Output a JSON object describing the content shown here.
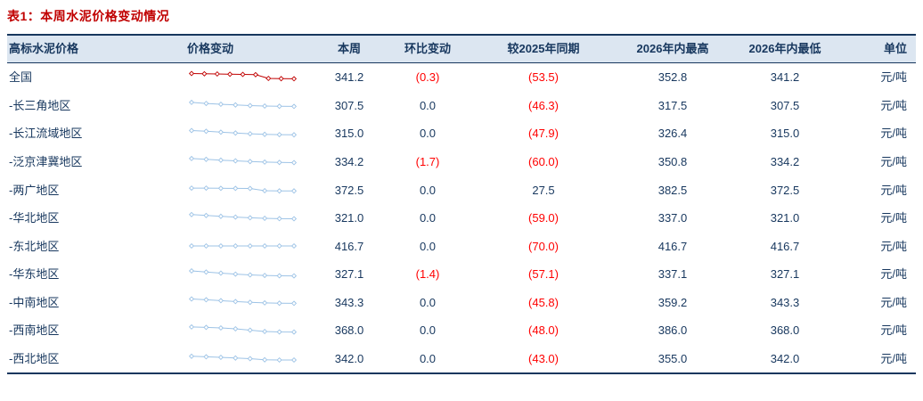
{
  "title": "表1：本周水泥价格变动情况",
  "colors": {
    "title_red": "#c00000",
    "negative_red": "#ff0000",
    "header_bg": "#dce6f1",
    "text_navy": "#17375e",
    "spark_blue": "#9dc3e6",
    "spark_national_red": "#c00000"
  },
  "table": {
    "headers": [
      "高标水泥价格",
      "价格变动",
      "本周",
      "环比变动",
      "较2025年同期",
      "2026年内最高",
      "2026年内最低",
      "单位"
    ],
    "rows": [
      {
        "name": "全国",
        "this_week": "341.2",
        "wow": "(0.3)",
        "yoy": "(53.5)",
        "high": "352.8",
        "low": "341.2",
        "unit": "元/吨",
        "spark_color": "#c00000",
        "spark": [
          9.6,
          9.4,
          9.2,
          9.0,
          8.8,
          8.6,
          5.2,
          5.0,
          4.9
        ]
      },
      {
        "name": "-长三角地区",
        "this_week": "307.5",
        "wow": "0.0",
        "yoy": "(46.3)",
        "high": "317.5",
        "low": "307.5",
        "unit": "元/吨",
        "spark_color": "#9dc3e6",
        "spark": [
          8.5,
          7.5,
          6.8,
          6.2,
          5.6,
          5.2,
          5.0,
          4.9
        ]
      },
      {
        "name": "-长江流域地区",
        "this_week": "315.0",
        "wow": "0.0",
        "yoy": "(47.9)",
        "high": "326.4",
        "low": "315.0",
        "unit": "元/吨",
        "spark_color": "#9dc3e6",
        "spark": [
          8.8,
          8.2,
          7.4,
          6.6,
          5.9,
          5.4,
          5.1,
          5.0
        ]
      },
      {
        "name": "-泛京津冀地区",
        "this_week": "334.2",
        "wow": "(1.7)",
        "yoy": "(60.0)",
        "high": "350.8",
        "low": "334.2",
        "unit": "元/吨",
        "spark_color": "#9dc3e6",
        "spark": [
          8.5,
          7.8,
          7.0,
          6.4,
          5.8,
          5.3,
          5.0,
          4.8
        ]
      },
      {
        "name": "-两广地区",
        "this_week": "372.5",
        "wow": "0.0",
        "yoy": "27.5",
        "high": "382.5",
        "low": "372.5",
        "unit": "元/吨",
        "spark_color": "#9dc3e6",
        "spark": [
          7.5,
          7.5,
          7.4,
          7.3,
          7.2,
          5.2,
          5.0,
          5.0
        ]
      },
      {
        "name": "-华北地区",
        "this_week": "321.0",
        "wow": "0.0",
        "yoy": "(59.0)",
        "high": "337.0",
        "low": "321.0",
        "unit": "元/吨",
        "spark_color": "#9dc3e6",
        "spark": [
          8.6,
          7.8,
          7.0,
          6.3,
          5.7,
          5.2,
          4.9,
          4.8
        ]
      },
      {
        "name": "-东北地区",
        "this_week": "416.7",
        "wow": "0.0",
        "yoy": "(70.0)",
        "high": "416.7",
        "low": "416.7",
        "unit": "元/吨",
        "spark_color": "#9dc3e6",
        "spark": [
          6.0,
          6.0,
          6.0,
          6.0,
          6.0,
          6.0,
          6.0,
          6.0
        ]
      },
      {
        "name": "-华东地区",
        "this_week": "327.1",
        "wow": "(1.4)",
        "yoy": "(57.1)",
        "high": "337.1",
        "low": "327.1",
        "unit": "元/吨",
        "spark_color": "#9dc3e6",
        "spark": [
          9.2,
          8.2,
          7.2,
          6.3,
          5.6,
          5.1,
          4.8,
          4.7
        ]
      },
      {
        "name": "-中南地区",
        "this_week": "343.3",
        "wow": "0.0",
        "yoy": "(45.8)",
        "high": "359.2",
        "low": "343.3",
        "unit": "元/吨",
        "spark_color": "#9dc3e6",
        "spark": [
          8.8,
          8.1,
          7.3,
          6.5,
          5.8,
          5.3,
          5.0,
          4.9
        ]
      },
      {
        "name": "-西南地区",
        "this_week": "368.0",
        "wow": "0.0",
        "yoy": "(48.0)",
        "high": "386.0",
        "low": "368.0",
        "unit": "元/吨",
        "spark_color": "#9dc3e6",
        "spark": [
          9.3,
          8.9,
          8.4,
          7.6,
          6.4,
          5.2,
          4.8,
          4.7
        ]
      },
      {
        "name": "-西北地区",
        "this_week": "342.0",
        "wow": "0.0",
        "yoy": "(43.0)",
        "high": "355.0",
        "low": "342.0",
        "unit": "元/吨",
        "spark_color": "#9dc3e6",
        "spark": [
          7.8,
          7.3,
          6.8,
          6.2,
          5.6,
          4.6,
          4.4,
          4.4
        ]
      }
    ]
  }
}
